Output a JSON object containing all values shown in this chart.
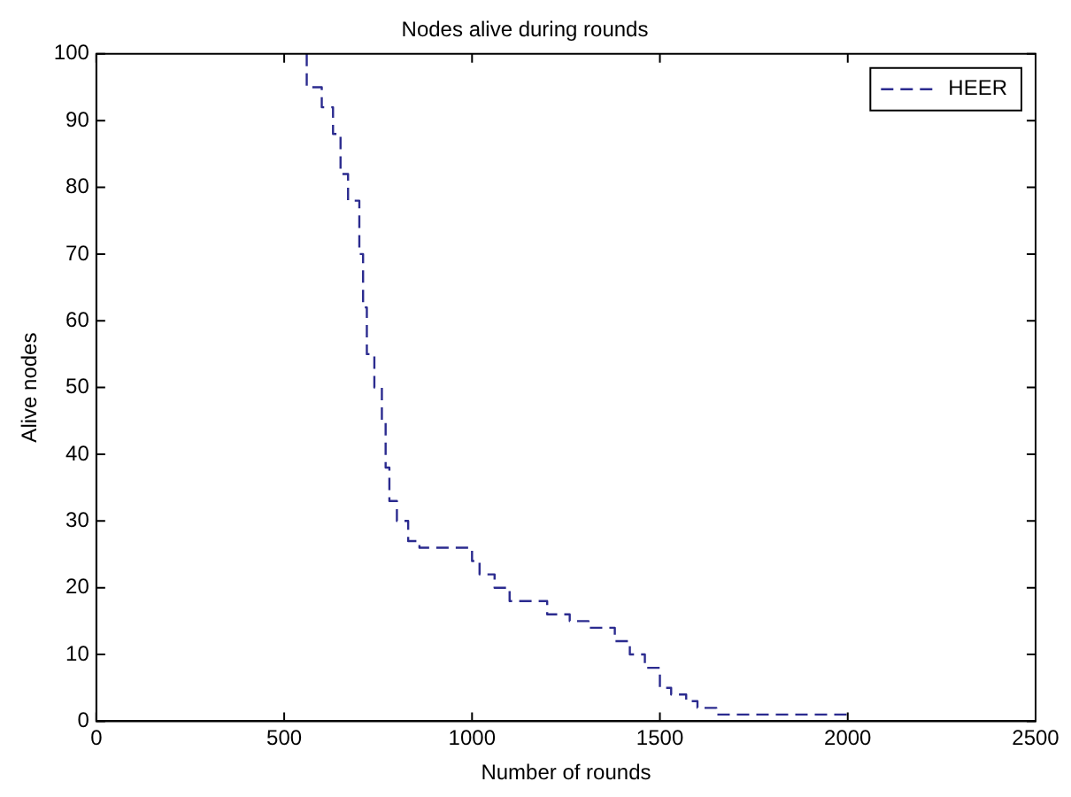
{
  "chart_data": {
    "type": "step",
    "title": "Nodes alive during rounds",
    "xlabel": "Number of rounds",
    "ylabel": "Alive nodes",
    "xlim": [
      0,
      2500
    ],
    "xticks": [
      0,
      500,
      1000,
      1500,
      2000,
      2500
    ],
    "ylim": [
      0,
      100
    ],
    "yticks": [
      0,
      10,
      20,
      30,
      40,
      50,
      60,
      70,
      80,
      90,
      100
    ],
    "grid": false,
    "legend": "top right",
    "line_style": "dashed",
    "marker": "none",
    "series": [
      {
        "name": "HEER",
        "color": "#2b2b8f",
        "x": [
          560,
          600,
          630,
          650,
          670,
          700,
          710,
          720,
          740,
          760,
          770,
          780,
          800,
          830,
          860,
          900,
          1000,
          1020,
          1060,
          1100,
          1200,
          1260,
          1310,
          1380,
          1420,
          1460,
          1500,
          1530,
          1570,
          1600,
          1650,
          1700,
          2000,
          2000
        ],
        "values": [
          100,
          95,
          92,
          88,
          82,
          78,
          70,
          62,
          55,
          50,
          45,
          38,
          33,
          30,
          27,
          26,
          26,
          24,
          22,
          20,
          18,
          16,
          15,
          14,
          12,
          10,
          8,
          5,
          4,
          3,
          2,
          1,
          1,
          0
        ]
      }
    ]
  }
}
